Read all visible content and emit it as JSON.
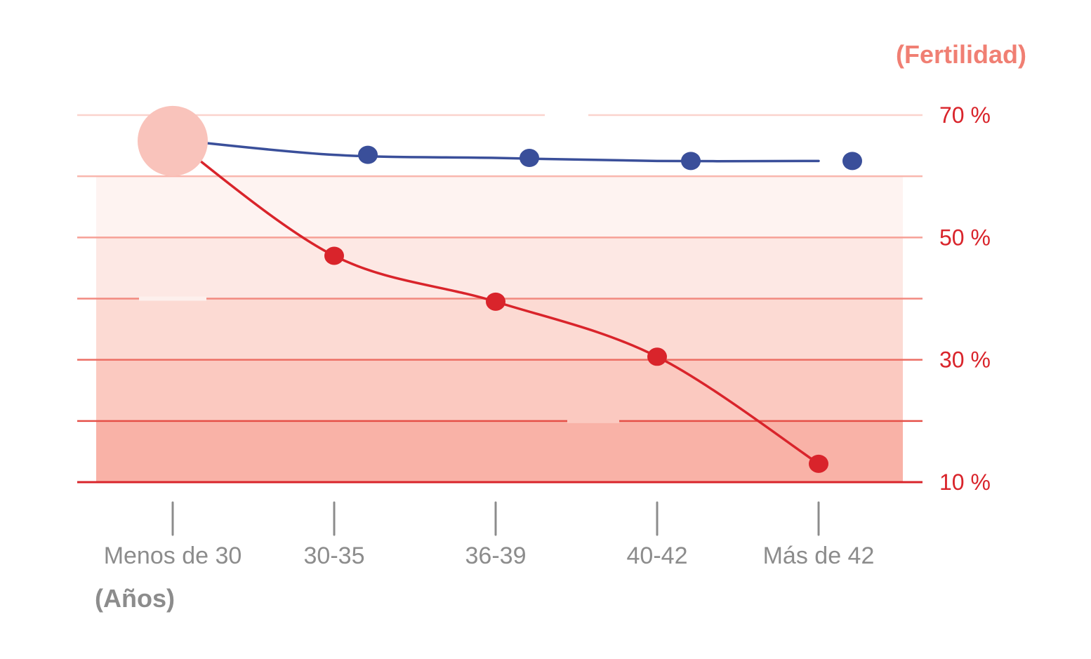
{
  "chart_data": {
    "type": "line",
    "xlabel": "(Años)",
    "ylabel": "(Fertilidad)",
    "categories": [
      "Menos de 30",
      "30-35",
      "36-39",
      "40-42",
      "Más de 42"
    ],
    "ylim": [
      10,
      70
    ],
    "yticks": [
      {
        "value": 70,
        "label": "70 %"
      },
      {
        "value": 50,
        "label": "50 %"
      },
      {
        "value": 30,
        "label": "30 %"
      },
      {
        "value": 10,
        "label": "10 %"
      }
    ],
    "gridlines": [
      70,
      60,
      50,
      40,
      30,
      20,
      10
    ],
    "grid": true,
    "series": [
      {
        "key": "blue",
        "color": "#3a4f9a",
        "values": [
          66,
          63.5,
          63,
          62.5,
          62.5
        ]
      },
      {
        "key": "red",
        "color": "#d9242b",
        "values": [
          66,
          47,
          39.5,
          30.5,
          13
        ]
      }
    ],
    "colors": {
      "accent_red": "#d9242b",
      "accent_blue": "#3a4f9a",
      "highlight_pink": "#f9c3bb",
      "ytitle": "#f07f73",
      "xtext": "#8c8c8c"
    }
  }
}
